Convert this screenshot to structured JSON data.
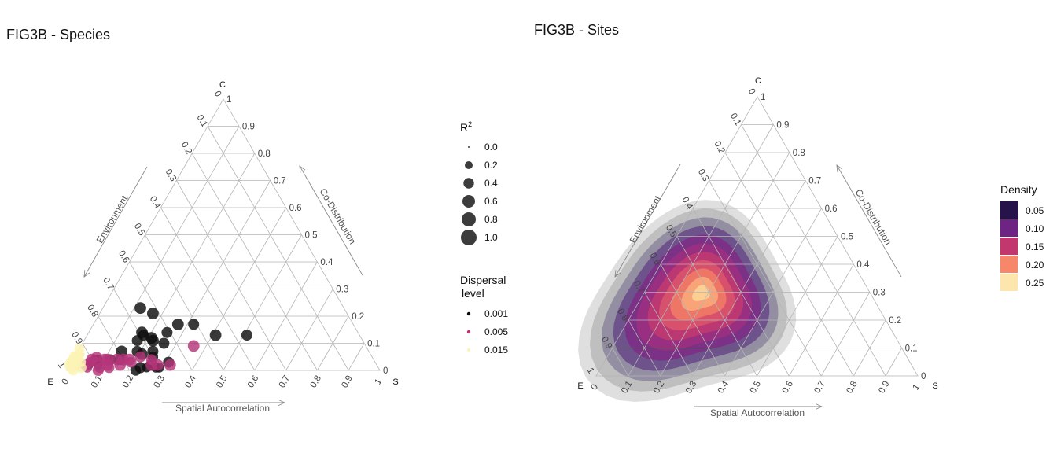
{
  "chart_data": [
    {
      "type": "scatter",
      "subtype": "ternary",
      "title": "FIG3B - Species",
      "vertex_labels": {
        "top": "C",
        "left": "E",
        "right": "S"
      },
      "axis_titles": {
        "left": "Environment",
        "bottom": "Spatial Autocorrelation",
        "right": "Co-Distribution"
      },
      "ticks": [
        "0",
        "0.1",
        "0.2",
        "0.3",
        "0.4",
        "0.5",
        "0.6",
        "0.7",
        "0.8",
        "0.9",
        "1"
      ],
      "grid": true,
      "size_legend": {
        "title": "R",
        "title_superscript": "2",
        "values": [
          "0.0",
          "0.2",
          "0.4",
          "0.6",
          "0.8",
          "1.0"
        ],
        "color": "#1a1a1a"
      },
      "color_legend": {
        "title_lines": [
          "Dispersal",
          "level"
        ],
        "levels": [
          {
            "label": "0.001",
            "color": "#0d0d0d"
          },
          {
            "label": "0.005",
            "color": "#b5367a"
          },
          {
            "label": "0.015",
            "color": "#fbf4b4"
          }
        ]
      },
      "series": [
        {
          "level": "0.001",
          "points": [
            [
              0.46,
              0.41,
              0.13,
              0.5
            ],
            [
              0.51,
              0.32,
              0.17,
              0.45
            ],
            [
              0.56,
              0.27,
              0.17,
              0.5
            ],
            [
              0.61,
              0.25,
              0.14,
              0.45
            ],
            [
              0.62,
              0.17,
              0.21,
              0.5
            ],
            [
              0.67,
              0.21,
              0.12,
              0.5
            ],
            [
              0.64,
              0.26,
              0.1,
              0.45
            ],
            [
              0.67,
              0.22,
              0.11,
              0.5
            ],
            [
              0.69,
              0.17,
              0.14,
              0.5
            ],
            [
              0.74,
              0.19,
              0.07,
              0.45
            ],
            [
              0.65,
              0.12,
              0.23,
              0.5
            ],
            [
              0.69,
              0.18,
              0.13,
              0.45
            ],
            [
              0.69,
              0.24,
              0.07,
              0.45
            ],
            [
              0.72,
              0.17,
              0.11,
              0.45
            ],
            [
              0.7,
              0.25,
              0.05,
              0.4
            ],
            [
              0.66,
              0.31,
              0.03,
              0.45
            ],
            [
              0.71,
              0.28,
              0.01,
              0.35
            ],
            [
              0.7,
              0.29,
              0.01,
              0.35
            ],
            [
              0.74,
              0.25,
              0.01,
              0.3
            ],
            [
              0.72,
              0.26,
              0.02,
              0.5
            ],
            [
              0.73,
              0.21,
              0.06,
              0.5
            ],
            [
              0.78,
              0.22,
              0.0,
              0.4
            ],
            [
              0.81,
              0.15,
              0.04,
              0.45
            ],
            [
              0.76,
              0.23,
              0.01,
              0.45
            ],
            [
              0.79,
              0.14,
              0.07,
              0.5
            ],
            [
              0.84,
              0.12,
              0.04,
              0.4
            ],
            [
              0.89,
              0.09,
              0.02,
              0.3
            ],
            [
              0.92,
              0.06,
              0.02,
              0.3
            ],
            [
              0.88,
              0.08,
              0.04,
              0.3
            ],
            [
              0.89,
              0.07,
              0.04,
              0.3
            ],
            [
              0.36,
              0.51,
              0.13,
              0.45
            ]
          ]
        },
        {
          "level": "0.005",
          "points": [
            [
              0.55,
              0.36,
              0.09,
              0.5
            ],
            [
              0.66,
              0.32,
              0.02,
              0.5
            ],
            [
              0.71,
              0.25,
              0.04,
              0.4
            ],
            [
              0.7,
              0.28,
              0.02,
              0.5
            ],
            [
              0.72,
              0.26,
              0.02,
              0.5
            ],
            [
              0.74,
              0.21,
              0.05,
              0.45
            ],
            [
              0.78,
              0.18,
              0.04,
              0.5
            ],
            [
              0.78,
              0.19,
              0.03,
              0.45
            ],
            [
              0.82,
              0.16,
              0.02,
              0.5
            ],
            [
              0.82,
              0.14,
              0.04,
              0.5
            ],
            [
              0.8,
              0.16,
              0.04,
              0.5
            ],
            [
              0.86,
              0.1,
              0.04,
              0.5
            ],
            [
              0.85,
              0.11,
              0.04,
              0.5
            ],
            [
              0.86,
              0.12,
              0.02,
              0.5
            ],
            [
              0.9,
              0.06,
              0.04,
              0.5
            ],
            [
              0.88,
              0.07,
              0.05,
              0.4
            ],
            [
              0.9,
              0.1,
              0.0,
              0.45
            ],
            [
              0.86,
              0.13,
              0.01,
              0.4
            ],
            [
              0.89,
              0.08,
              0.03,
              0.4
            ],
            [
              0.89,
              0.1,
              0.01,
              0.4
            ],
            [
              0.93,
              0.05,
              0.02,
              0.45
            ],
            [
              0.96,
              0.02,
              0.02,
              0.4
            ],
            [
              0.91,
              0.06,
              0.03,
              0.4
            ],
            [
              0.93,
              0.06,
              0.01,
              0.35
            ]
          ]
        },
        {
          "level": "0.015",
          "points": [
            [
              0.97,
              0.01,
              0.02,
              0.5
            ],
            [
              0.95,
              0.01,
              0.04,
              0.5
            ],
            [
              0.97,
              0.0,
              0.03,
              0.45
            ],
            [
              0.97,
              0.0,
              0.03,
              0.5
            ],
            [
              0.98,
              0.0,
              0.02,
              0.5
            ],
            [
              0.95,
              0.0,
              0.05,
              0.45
            ],
            [
              0.95,
              0.0,
              0.05,
              0.45
            ],
            [
              0.98,
              0.01,
              0.01,
              0.45
            ],
            [
              0.96,
              0.01,
              0.03,
              0.4
            ],
            [
              0.93,
              0.01,
              0.06,
              0.4
            ],
            [
              0.96,
              0.01,
              0.03,
              0.45
            ],
            [
              0.95,
              0.01,
              0.04,
              0.45
            ],
            [
              0.94,
              0.01,
              0.05,
              0.4
            ],
            [
              0.92,
              0.0,
              0.08,
              0.35
            ],
            [
              0.95,
              0.04,
              0.01,
              0.45
            ],
            [
              0.96,
              0.02,
              0.02,
              0.4
            ],
            [
              0.98,
              0.02,
              0.0,
              0.35
            ],
            [
              0.94,
              0.03,
              0.03,
              0.35
            ]
          ]
        }
      ]
    },
    {
      "type": "heatmap",
      "subtype": "ternary-density",
      "title": "FIG3B - Sites",
      "vertex_labels": {
        "top": "C",
        "left": "E",
        "right": "S"
      },
      "axis_titles": {
        "left": "Environment",
        "bottom": "Spatial Autocorrelation",
        "right": "Co-Distribution"
      },
      "ticks": [
        "0",
        "0.1",
        "0.2",
        "0.3",
        "0.4",
        "0.5",
        "0.6",
        "0.7",
        "0.8",
        "0.9",
        "1"
      ],
      "grid": true,
      "legend": {
        "title": "Density",
        "position": "right",
        "entries": [
          {
            "label": "0.05",
            "color": "#26134a"
          },
          {
            "label": "0.10",
            "color": "#6d2482"
          },
          {
            "label": "0.15",
            "color": "#c2386e"
          },
          {
            "label": "0.20",
            "color": "#f6876a"
          },
          {
            "label": "0.25",
            "color": "#fde6ae"
          }
        ]
      },
      "density_peak": {
        "E": 0.52,
        "S": 0.18,
        "C": 0.3
      },
      "contour_colors": [
        "#d4d4d4",
        "#b4b4b4",
        "#8f8aa0",
        "#6a4d8a",
        "#7b2f85",
        "#9a2f80",
        "#bf3a72",
        "#d9546b",
        "#f07a66",
        "#f8a77a",
        "#fcd497",
        "#fdf2c4"
      ]
    }
  ]
}
